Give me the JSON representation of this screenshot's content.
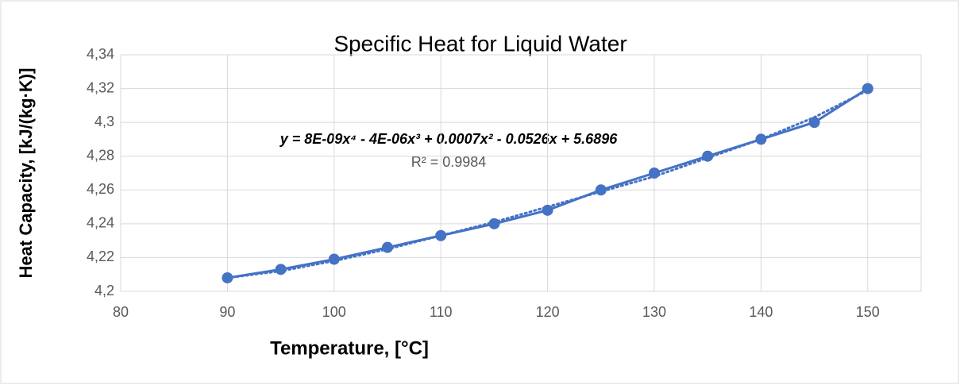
{
  "chart_data": {
    "type": "line",
    "title": "Specific Heat for Liquid Water",
    "xlabel": "Temperature, [°C]",
    "ylabel": "Heat Capacity, [kJ/(kg·K)]",
    "x": [
      90,
      95,
      100,
      105,
      110,
      115,
      120,
      125,
      130,
      135,
      140,
      145,
      150
    ],
    "series": [
      {
        "color": "#4472c4",
        "values": [
          4.208,
          4.213,
          4.219,
          4.226,
          4.233,
          4.24,
          4.248,
          4.26,
          4.27,
          4.28,
          4.29,
          4.3,
          4.32
        ]
      }
    ],
    "trendline": {
      "color": "#4472c4",
      "equation": "y = 8E-09x⁴ - 4E-06x³ + 0.0007x² - 0.0526x + 5.6896",
      "r_squared_label": "R² = 0.9984",
      "values": [
        4.208,
        4.212,
        4.218,
        4.225,
        4.233,
        4.241,
        4.25,
        4.259,
        4.268,
        4.279,
        4.29,
        4.303,
        4.319
      ]
    },
    "xlim": [
      80,
      155
    ],
    "xticks": [
      80,
      90,
      100,
      110,
      120,
      130,
      140,
      150
    ],
    "ylim": [
      4.2,
      4.34
    ],
    "yticks": [
      {
        "value": 4.2,
        "label": "4,2"
      },
      {
        "value": 4.22,
        "label": "4,22"
      },
      {
        "value": 4.24,
        "label": "4,24"
      },
      {
        "value": 4.26,
        "label": "4,26"
      },
      {
        "value": 4.28,
        "label": "4,28"
      },
      {
        "value": 4.3,
        "label": "4,3"
      },
      {
        "value": 4.32,
        "label": "4,32"
      },
      {
        "value": 4.34,
        "label": "4,34"
      }
    ],
    "grid": true
  }
}
